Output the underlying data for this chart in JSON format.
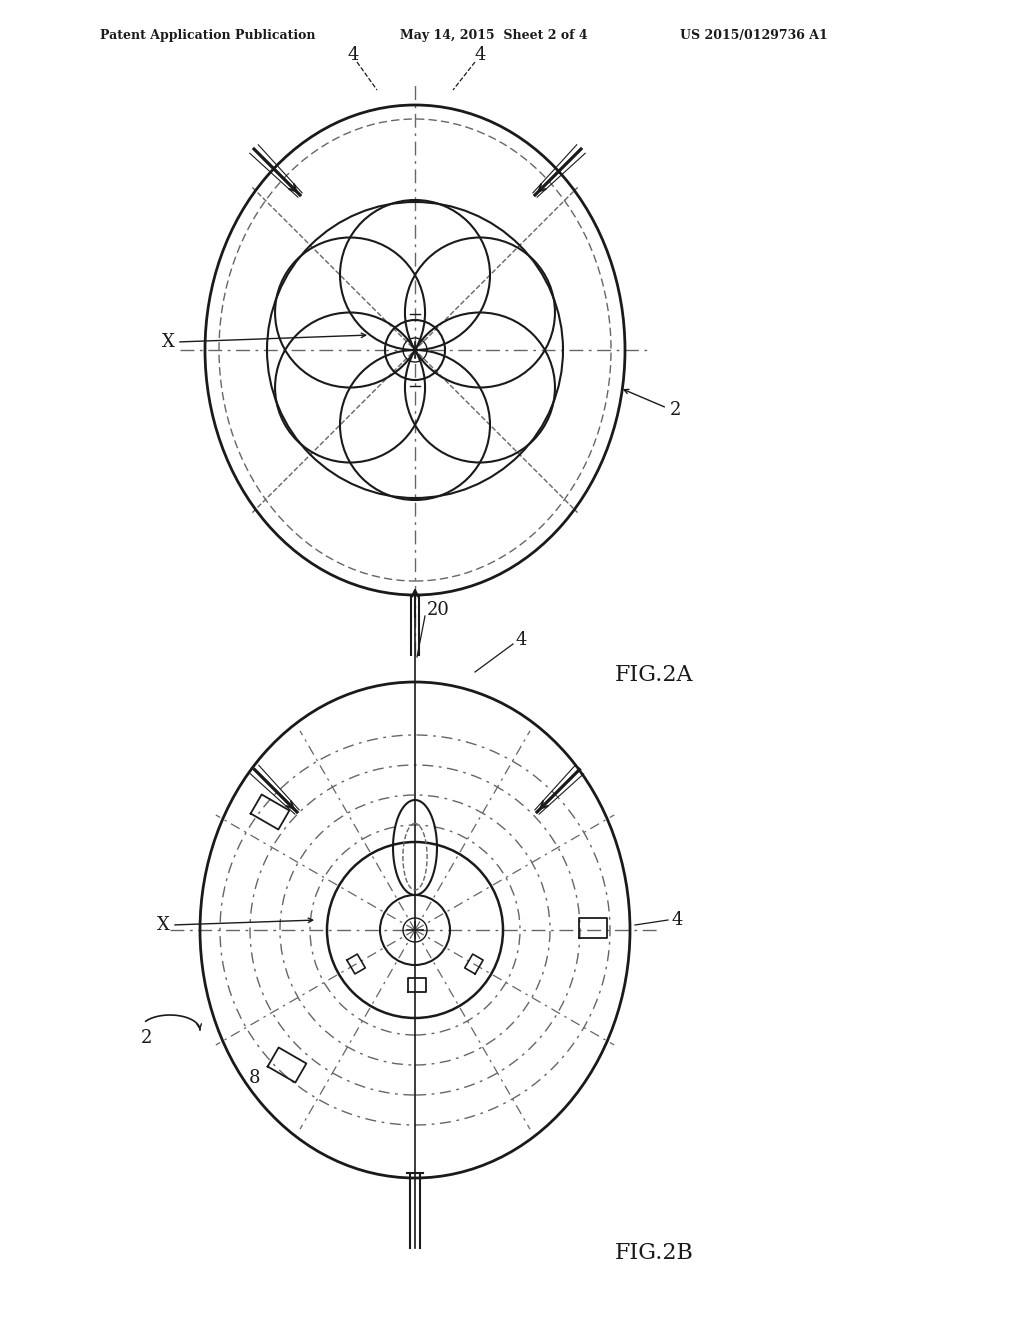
{
  "bg_color": "#ffffff",
  "line_color": "#1a1a1a",
  "dash_color": "#666666",
  "header_left": "Patent Application Publication",
  "header_mid": "May 14, 2015  Sheet 2 of 4",
  "header_right": "US 2015/0129736 A1",
  "fig2a_label": "FIG.2A",
  "fig2b_label": "FIG.2B"
}
